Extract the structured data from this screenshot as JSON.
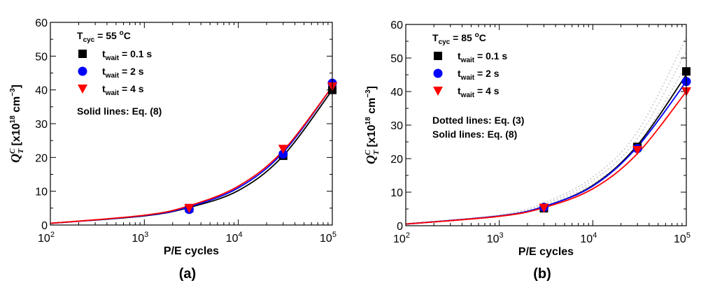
{
  "chart_data": [
    {
      "panel_label": "(a)",
      "type": "scatter",
      "xscale": "log",
      "xlim": [
        100,
        100000
      ],
      "ylim": [
        0,
        60
      ],
      "xlabel": "P/E cycles",
      "ylabel": {
        "main": "Q",
        "sub": "T",
        "sup": "C",
        "units": " [x10",
        "exp": "18",
        "units2": " cm",
        "exp2": "−3",
        "units3": "]"
      },
      "x_ticks": [
        {
          "base": "10",
          "exp": "2"
        },
        {
          "base": "10",
          "exp": "3"
        },
        {
          "base": "10",
          "exp": "4"
        },
        {
          "base": "10",
          "exp": "5"
        }
      ],
      "y_ticks": [
        "0",
        "10",
        "20",
        "30",
        "40",
        "50",
        "60"
      ],
      "condition": {
        "label": "T",
        "sub": "cyc",
        "value": " = 55 ",
        "unit_sup": "o",
        "unit": "C"
      },
      "series": [
        {
          "name": "t",
          "sub": "wait",
          "value": " = 0.1 s",
          "color": "#000000",
          "marker": "square",
          "x": [
            3000,
            30000,
            100000
          ],
          "y": [
            5.0,
            20.5,
            40.0
          ]
        },
        {
          "name": "t",
          "sub": "wait",
          "value": " = 2 s",
          "color": "#0000ff",
          "marker": "circle",
          "x": [
            3000,
            30000,
            100000
          ],
          "y": [
            4.6,
            21.0,
            42.0
          ]
        },
        {
          "name": "t",
          "sub": "wait",
          "value": " = 4 s",
          "color": "#ff0000",
          "marker": "triangle-down",
          "x": [
            3000,
            30000,
            100000
          ],
          "y": [
            5.0,
            22.5,
            41.0
          ]
        }
      ],
      "fit_lines": [
        {
          "color": "#000000",
          "style": "solid",
          "x": [
            100,
            1000,
            3000,
            10000,
            30000,
            100000
          ],
          "y": [
            0.5,
            2.7,
            5.2,
            10.2,
            20.5,
            40.0
          ]
        },
        {
          "color": "#0000ff",
          "style": "solid",
          "x": [
            100,
            1000,
            3000,
            10000,
            30000,
            100000
          ],
          "y": [
            0.5,
            2.8,
            5.4,
            11.0,
            21.5,
            41.0
          ]
        },
        {
          "color": "#ff0000",
          "style": "solid",
          "x": [
            100,
            1000,
            3000,
            10000,
            30000,
            100000
          ],
          "y": [
            0.5,
            2.9,
            5.7,
            11.5,
            22.0,
            41.0
          ]
        }
      ],
      "notes": [
        "Solid lines: Eq. (8)"
      ]
    },
    {
      "panel_label": "(b)",
      "type": "scatter",
      "xscale": "log",
      "xlim": [
        100,
        100000
      ],
      "ylim": [
        0,
        60
      ],
      "xlabel": "P/E cycles",
      "ylabel": {
        "main": "Q",
        "sub": "T",
        "sup": "C",
        "units": " [x10",
        "exp": "18",
        "units2": " cm",
        "exp2": "−3",
        "units3": "]"
      },
      "x_ticks": [
        {
          "base": "10",
          "exp": "2"
        },
        {
          "base": "10",
          "exp": "3"
        },
        {
          "base": "10",
          "exp": "4"
        },
        {
          "base": "10",
          "exp": "5"
        }
      ],
      "y_ticks": [
        "0",
        "10",
        "20",
        "30",
        "40",
        "50",
        "60"
      ],
      "condition": {
        "label": "T",
        "sub": "cyc",
        "value": " = 85 ",
        "unit_sup": "o",
        "unit": "C"
      },
      "series": [
        {
          "name": "t",
          "sub": "wait",
          "value": " = 0.1 s",
          "color": "#000000",
          "marker": "square",
          "x": [
            3000,
            30000,
            100000
          ],
          "y": [
            5.2,
            23.5,
            46.0
          ]
        },
        {
          "name": "t",
          "sub": "wait",
          "value": " = 2 s",
          "color": "#0000ff",
          "marker": "circle",
          "x": [
            3000,
            30000,
            100000
          ],
          "y": [
            5.5,
            23.0,
            43.0
          ]
        },
        {
          "name": "t",
          "sub": "wait",
          "value": " = 4 s",
          "color": "#ff0000",
          "marker": "triangle-down",
          "x": [
            3000,
            30000,
            100000
          ],
          "y": [
            5.3,
            22.5,
            40.0
          ]
        }
      ],
      "fit_lines": [
        {
          "color": "#000000",
          "style": "solid",
          "x": [
            100,
            1000,
            3000,
            10000,
            30000,
            100000
          ],
          "y": [
            0.5,
            2.9,
            5.7,
            12.0,
            24.0,
            45.0
          ]
        },
        {
          "color": "#0000ff",
          "style": "solid",
          "x": [
            100,
            1000,
            3000,
            10000,
            30000,
            100000
          ],
          "y": [
            0.5,
            2.9,
            5.7,
            11.8,
            23.5,
            43.0
          ]
        },
        {
          "color": "#ff0000",
          "style": "solid",
          "x": [
            100,
            1000,
            3000,
            10000,
            30000,
            100000
          ],
          "y": [
            0.5,
            2.8,
            5.4,
            11.0,
            21.5,
            40.0
          ]
        },
        {
          "color": "#c8c8c8",
          "style": "dotted",
          "x": [
            100,
            1000,
            3000,
            10000,
            30000,
            100000
          ],
          "y": [
            0.5,
            3.2,
            6.8,
            14.5,
            28.0,
            56.0
          ]
        },
        {
          "color": "#c8c8c8",
          "style": "dotted",
          "x": [
            100,
            1000,
            3000,
            10000,
            30000,
            100000
          ],
          "y": [
            0.5,
            3.0,
            6.3,
            13.5,
            26.0,
            52.0
          ]
        },
        {
          "color": "#c8c8c8",
          "style": "dotted",
          "x": [
            100,
            1000,
            3000,
            10000,
            30000,
            100000
          ],
          "y": [
            0.5,
            2.8,
            5.9,
            12.5,
            24.0,
            48.0
          ]
        }
      ],
      "notes": [
        "Dotted lines: Eq. (3)",
        "Solid lines: Eq. (8)"
      ]
    }
  ]
}
